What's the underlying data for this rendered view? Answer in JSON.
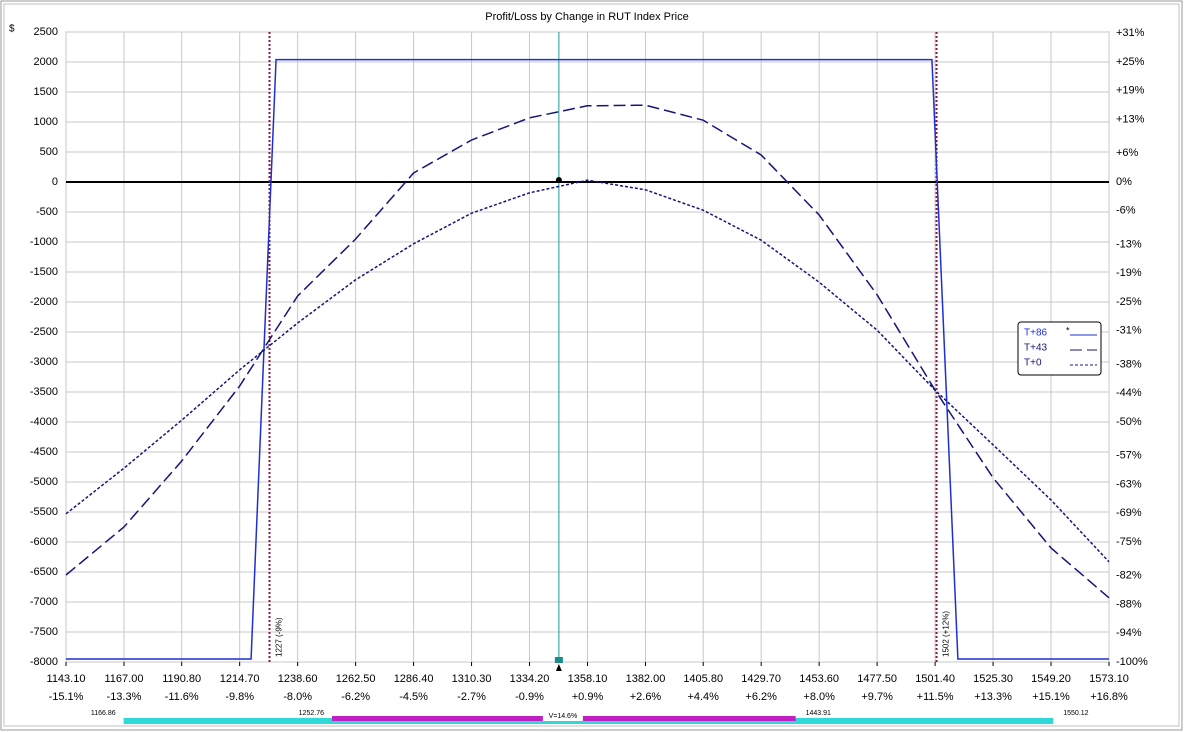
{
  "chart_data": {
    "type": "line",
    "title": "Profit/Loss by Change in RUT Index Price",
    "y_unit": "$",
    "xlim": [
      1143.1,
      1573.1
    ],
    "xticks": [
      {
        "value": 1143.1,
        "label": "1143.10"
      },
      {
        "value": 1167.0,
        "label": "1167.00"
      },
      {
        "value": 1190.8,
        "label": "1190.80"
      },
      {
        "value": 1214.7,
        "label": "1214.70"
      },
      {
        "value": 1238.6,
        "label": "1238.60"
      },
      {
        "value": 1262.5,
        "label": "1262.50"
      },
      {
        "value": 1286.4,
        "label": "1286.40"
      },
      {
        "value": 1310.3,
        "label": "1310.30"
      },
      {
        "value": 1334.2,
        "label": "1334.20"
      },
      {
        "value": 1358.1,
        "label": "1358.10"
      },
      {
        "value": 1382.0,
        "label": "1382.00"
      },
      {
        "value": 1405.8,
        "label": "1405.80"
      },
      {
        "value": 1429.7,
        "label": "1429.70"
      },
      {
        "value": 1453.6,
        "label": "1453.60"
      },
      {
        "value": 1477.5,
        "label": "1477.50"
      },
      {
        "value": 1501.4,
        "label": "1501.40"
      },
      {
        "value": 1525.3,
        "label": "1525.30"
      },
      {
        "value": 1549.2,
        "label": "1549.20"
      },
      {
        "value": 1573.1,
        "label": "1573.10"
      }
    ],
    "xtick_pct_labels": [
      "-15.1%",
      "-13.3%",
      "-11.6%",
      "-9.8%",
      "-8.0%",
      "-6.2%",
      "-4.5%",
      "-2.7%",
      "-0.9%",
      "+0.9%",
      "+2.6%",
      "+4.4%",
      "+6.2%",
      "+8.0%",
      "+9.7%",
      "+11.5%",
      "+13.3%",
      "+15.1%",
      "+16.8%"
    ],
    "ylim": [
      -8000,
      2500
    ],
    "yticks": [
      2500,
      2000,
      1500,
      1000,
      500,
      0,
      -500,
      -1000,
      -1500,
      -2000,
      -2500,
      -3000,
      -3500,
      -4000,
      -4500,
      -5000,
      -5500,
      -6000,
      -6500,
      -7000,
      -7500,
      -8000
    ],
    "y2lim": [
      -100,
      31.25
    ],
    "y2ticks": [
      {
        "value": 31,
        "label": "+31%"
      },
      {
        "value": 25,
        "label": "+25%"
      },
      {
        "value": 19,
        "label": "+19%"
      },
      {
        "value": 13,
        "label": "+13%"
      },
      {
        "value": 6,
        "label": "+6%"
      },
      {
        "value": 0,
        "label": "0%"
      },
      {
        "value": -6,
        "label": "-6%"
      },
      {
        "value": -13,
        "label": "-13%"
      },
      {
        "value": -19,
        "label": "-19%"
      },
      {
        "value": -25,
        "label": "-25%"
      },
      {
        "value": -31,
        "label": "-31%"
      },
      {
        "value": -38,
        "label": "-38%"
      },
      {
        "value": -44,
        "label": "-44%"
      },
      {
        "value": -50,
        "label": "-50%"
      },
      {
        "value": -57,
        "label": "-57%"
      },
      {
        "value": -63,
        "label": "-63%"
      },
      {
        "value": -69,
        "label": "-69%"
      },
      {
        "value": -75,
        "label": "-75%"
      },
      {
        "value": -82,
        "label": "-82%"
      },
      {
        "value": -88,
        "label": "-88%"
      },
      {
        "value": -94,
        "label": "-94%"
      },
      {
        "value": -100,
        "label": "-100%"
      }
    ],
    "grid": true,
    "current_price": 1346.3,
    "vlines": [
      {
        "value": 1227,
        "label": "1227 (-9%)"
      },
      {
        "value": 1502,
        "label": "1502 (+12%)"
      }
    ],
    "series": [
      {
        "name": "T+86",
        "color": "#1f2fd0",
        "dash": "solid",
        "legend_marker": "*",
        "x": [
          1143.1,
          1219.4,
          1229.7,
          1500.1,
          1510.8,
          1573.1
        ],
        "values": [
          -7950,
          -7950,
          2040,
          2040,
          -7950,
          -7950
        ]
      },
      {
        "name": "T+43",
        "color": "#15157a",
        "dash": "dashed",
        "x": [
          1143.1,
          1167.0,
          1190.8,
          1214.7,
          1238.6,
          1262.5,
          1286.4,
          1310.3,
          1334.2,
          1358.1,
          1382.0,
          1405.8,
          1429.7,
          1453.6,
          1477.5,
          1501.4,
          1525.3,
          1549.2,
          1573.1
        ],
        "values": [
          -6550,
          -5750,
          -4650,
          -3400,
          -1900,
          -950,
          150,
          700,
          1070,
          1270,
          1280,
          1030,
          450,
          -550,
          -1880,
          -3470,
          -4930,
          -6100,
          -6930
        ]
      },
      {
        "name": "T+0",
        "color": "#15157a",
        "dash": "dotted",
        "x": [
          1143.1,
          1167.0,
          1190.8,
          1214.7,
          1238.6,
          1262.5,
          1286.4,
          1310.3,
          1334.2,
          1358.1,
          1382.0,
          1405.8,
          1429.7,
          1453.6,
          1477.5,
          1501.4,
          1525.3,
          1549.2,
          1573.1
        ],
        "values": [
          -5530,
          -4770,
          -3970,
          -3130,
          -2350,
          -1630,
          -1030,
          -520,
          -180,
          30,
          -130,
          -470,
          -970,
          -1670,
          -2470,
          -3470,
          -4380,
          -5300,
          -6330
        ]
      }
    ],
    "range_bar": {
      "outer": [
        1166.86,
        1550.12
      ],
      "inner": [
        1252.76,
        1443.91
      ],
      "label": "V=14.6%"
    }
  }
}
